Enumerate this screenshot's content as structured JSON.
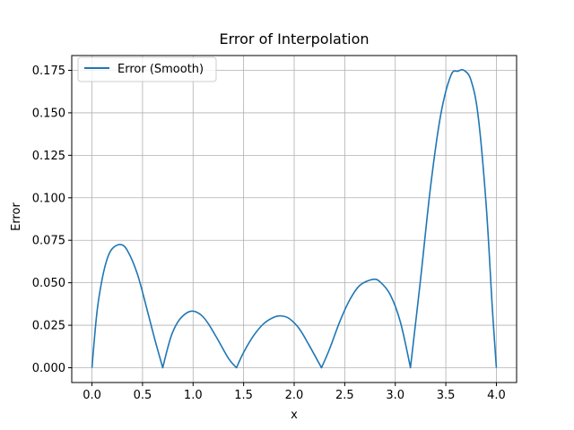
{
  "chart_data": {
    "type": "line",
    "title": "Error of Interpolation",
    "xlabel": "x",
    "ylabel": "Error",
    "xlim": [
      -0.2,
      4.2
    ],
    "ylim": [
      -0.0087,
      0.1837
    ],
    "xticks": [
      0.0,
      0.5,
      1.0,
      1.5,
      2.0,
      2.5,
      3.0,
      3.5,
      4.0
    ],
    "yticks": [
      0.0,
      0.025,
      0.05,
      0.075,
      0.1,
      0.125,
      0.15,
      0.175
    ],
    "xtick_labels": [
      "0.0",
      "0.5",
      "1.0",
      "1.5",
      "2.0",
      "2.5",
      "3.0",
      "3.5",
      "4.0"
    ],
    "ytick_labels": [
      "0.000",
      "0.025",
      "0.050",
      "0.075",
      "0.100",
      "0.125",
      "0.150",
      "0.175"
    ],
    "grid": true,
    "legend_position": "upper-left",
    "series": [
      {
        "name": "Error (Smooth)",
        "color": "#1f77b4",
        "x": [
          0.0,
          0.05,
          0.1,
          0.15,
          0.2,
          0.28,
          0.35,
          0.45,
          0.55,
          0.62,
          0.7,
          0.78,
          0.85,
          0.93,
          1.0,
          1.08,
          1.15,
          1.25,
          1.35,
          1.43,
          1.5,
          1.6,
          1.7,
          1.8,
          1.87,
          1.95,
          2.05,
          2.15,
          2.27,
          2.35,
          2.45,
          2.55,
          2.65,
          2.78,
          2.85,
          2.95,
          3.05,
          3.15,
          3.25,
          3.35,
          3.45,
          3.55,
          3.62,
          3.68,
          3.75,
          3.82,
          3.9,
          3.96,
          4.0
        ],
        "y": [
          0.0,
          0.033,
          0.052,
          0.064,
          0.07,
          0.0725,
          0.069,
          0.055,
          0.033,
          0.017,
          0.0,
          0.018,
          0.027,
          0.032,
          0.0333,
          0.031,
          0.026,
          0.016,
          0.0055,
          0.0,
          0.009,
          0.019,
          0.026,
          0.0297,
          0.0305,
          0.029,
          0.023,
          0.013,
          0.0,
          0.011,
          0.027,
          0.04,
          0.0485,
          0.052,
          0.0505,
          0.043,
          0.027,
          0.0,
          0.052,
          0.107,
          0.149,
          0.172,
          0.1745,
          0.175,
          0.169,
          0.148,
          0.095,
          0.035,
          0.0
        ]
      }
    ]
  }
}
